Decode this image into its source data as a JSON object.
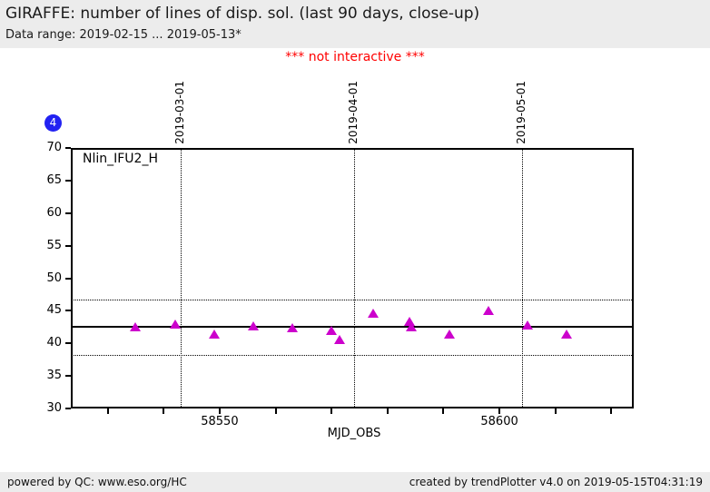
{
  "header": {
    "title": "GIRAFFE: number of lines of disp. sol. (last 90 days, close-up)",
    "subtitle": "Data range: 2019-02-15 ... 2019-05-13*"
  },
  "warning": "*** not interactive ***",
  "badge": {
    "label": "4"
  },
  "footer": {
    "left": "powered by QC: www.eso.org/HC",
    "right": "created by trendPlotter v4.0 on 2019-05-15T04:31:19"
  },
  "colors": {
    "header_bg": "#ececec",
    "footer_bg": "#ececec",
    "warning_red": "#ff0000",
    "badge_blue": "#2222f2",
    "marker_magenta": "#cc00cc",
    "axis_black": "#000000"
  },
  "chart_data": {
    "type": "scatter",
    "series_label": "Nlin_IFU2_H",
    "xlabel": "MJD_OBS",
    "ylabel": "",
    "marker": "triangle-up",
    "marker_color": "#cc00cc",
    "grid": "month-vlines-dotted",
    "xlim": [
      58523.4,
      58624.0
    ],
    "ylim": [
      30,
      70
    ],
    "yticks": [
      30,
      35,
      40,
      45,
      50,
      55,
      60,
      65,
      70
    ],
    "xticks_minor": [
      58530,
      58540,
      58550,
      58560,
      58570,
      58580,
      58590,
      58600,
      58610,
      58620
    ],
    "xticks_labeled": [
      {
        "value": 58550,
        "label": "58550"
      },
      {
        "value": 58600,
        "label": "58600"
      }
    ],
    "month_lines": [
      {
        "mjd": 58543,
        "label": "2019-03-01"
      },
      {
        "mjd": 58574,
        "label": "2019-04-01"
      },
      {
        "mjd": 58604,
        "label": "2019-05-01"
      }
    ],
    "avg_line": 42.5,
    "thresholds": [
      46.7,
      38.2
    ],
    "points": [
      {
        "x": 58535.0,
        "y": 42.5
      },
      {
        "x": 58542.0,
        "y": 42.9
      },
      {
        "x": 58549.0,
        "y": 41.4
      },
      {
        "x": 58556.0,
        "y": 42.7
      },
      {
        "x": 58563.0,
        "y": 42.4
      },
      {
        "x": 58570.0,
        "y": 42.0
      },
      {
        "x": 58571.5,
        "y": 40.6
      },
      {
        "x": 58577.5,
        "y": 44.6
      },
      {
        "x": 58584.0,
        "y": 43.4
      },
      {
        "x": 58584.3,
        "y": 42.5
      },
      {
        "x": 58591.0,
        "y": 41.4
      },
      {
        "x": 58598.0,
        "y": 45.1
      },
      {
        "x": 58605.0,
        "y": 42.8
      },
      {
        "x": 58612.0,
        "y": 41.4
      }
    ]
  }
}
